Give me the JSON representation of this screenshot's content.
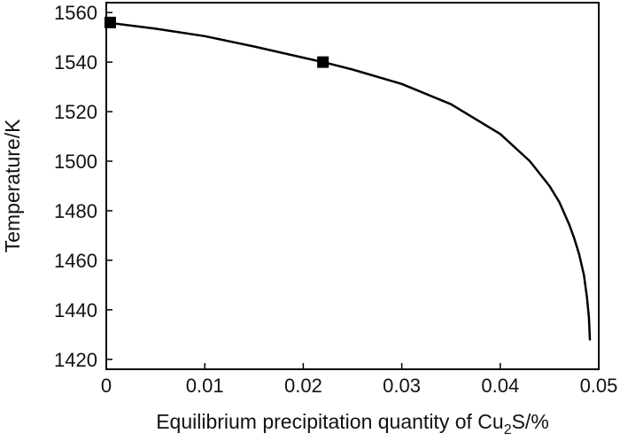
{
  "chart_data": {
    "type": "line",
    "xlabel": "Equilibrium precipitation quantity of Cu",
    "xlabel_subscript": "2",
    "xlabel_suffix": "S/%",
    "ylabel": "Temperature/K",
    "xlim": [
      0,
      0.05
    ],
    "ylim": [
      1416,
      1564
    ],
    "x_ticks": [
      0,
      0.01,
      0.02,
      0.03,
      0.04,
      0.05
    ],
    "x_tick_labels": [
      "0",
      "0.01",
      "0.02",
      "0.03",
      "0.04",
      "0.05"
    ],
    "y_ticks": [
      1420,
      1440,
      1460,
      1480,
      1500,
      1520,
      1540,
      1560
    ],
    "y_tick_labels": [
      "1420",
      "1440",
      "1460",
      "1480",
      "1500",
      "1520",
      "1540",
      "1560"
    ],
    "grid": false,
    "legend": "none",
    "series": [
      {
        "line_x": [
          0,
          0.005,
          0.01,
          0.015,
          0.02,
          0.022,
          0.025,
          0.03,
          0.035,
          0.04,
          0.043,
          0.045,
          0.046,
          0.047,
          0.0475,
          0.048,
          0.0485,
          0.0488,
          0.049,
          0.0491
        ],
        "line_y": [
          1556,
          1553.5,
          1550.5,
          1546.3,
          1541.8,
          1540,
          1537,
          1531.2,
          1523,
          1511,
          1500,
          1490,
          1483.5,
          1474.5,
          1469,
          1462.5,
          1454,
          1445,
          1437,
          1428
        ],
        "color": "#000000"
      }
    ],
    "markers": {
      "shape": "square",
      "color": "#000000",
      "points": [
        {
          "x": 0.0004,
          "y": 1556
        },
        {
          "x": 0.022,
          "y": 1540
        }
      ]
    }
  }
}
